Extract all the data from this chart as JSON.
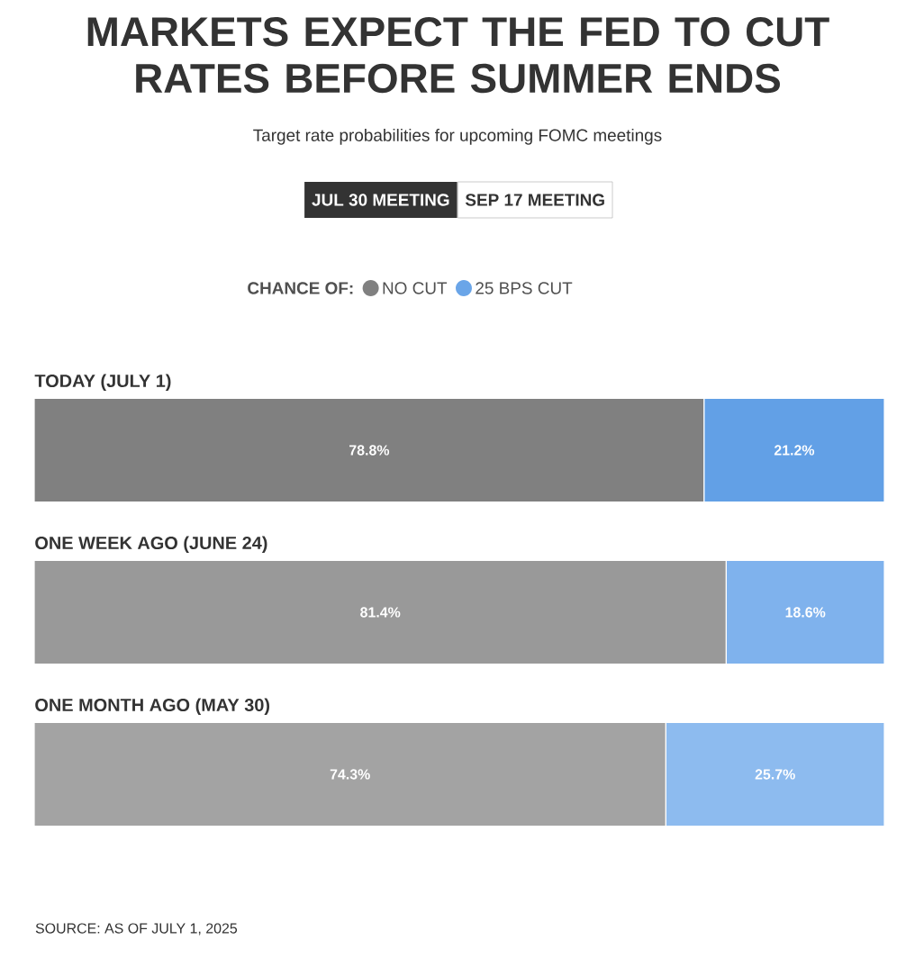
{
  "chart_data": {
    "type": "bar",
    "orientation": "horizontal",
    "stacked": true,
    "title": "MARKETS EXPECT THE FED TO CUT RATES BEFORE SUMMER ENDS",
    "subtitle": "Target rate probabilities for upcoming FOMC meetings",
    "legend_title": "CHANCE OF:",
    "legend": "top",
    "categories": [
      "TODAY (JULY 1)",
      "ONE WEEK AGO (JUNE 24)",
      "ONE MONTH AGO (MAY 30)"
    ],
    "series": [
      {
        "name": "NO CUT",
        "color": "#808080",
        "colors": [
          "#808080",
          "#999999",
          "#a3a3a3"
        ],
        "values": [
          78.8,
          81.4,
          74.3
        ],
        "value_labels": [
          "78.8%",
          "81.4%",
          "74.3%"
        ]
      },
      {
        "name": "25 BPS CUT",
        "color": "#6aa5e8",
        "colors": [
          "#62a0e6",
          "#7fb2ed",
          "#8dbbef"
        ],
        "values": [
          21.2,
          18.6,
          25.7
        ],
        "value_labels": [
          "21.2%",
          "18.6%",
          "25.7%"
        ]
      }
    ],
    "annotations": [
      "JUL 30 MEETING",
      "SEP 17 MEETING",
      "SOURCE: AS OF JULY 1, 2025"
    ]
  }
}
